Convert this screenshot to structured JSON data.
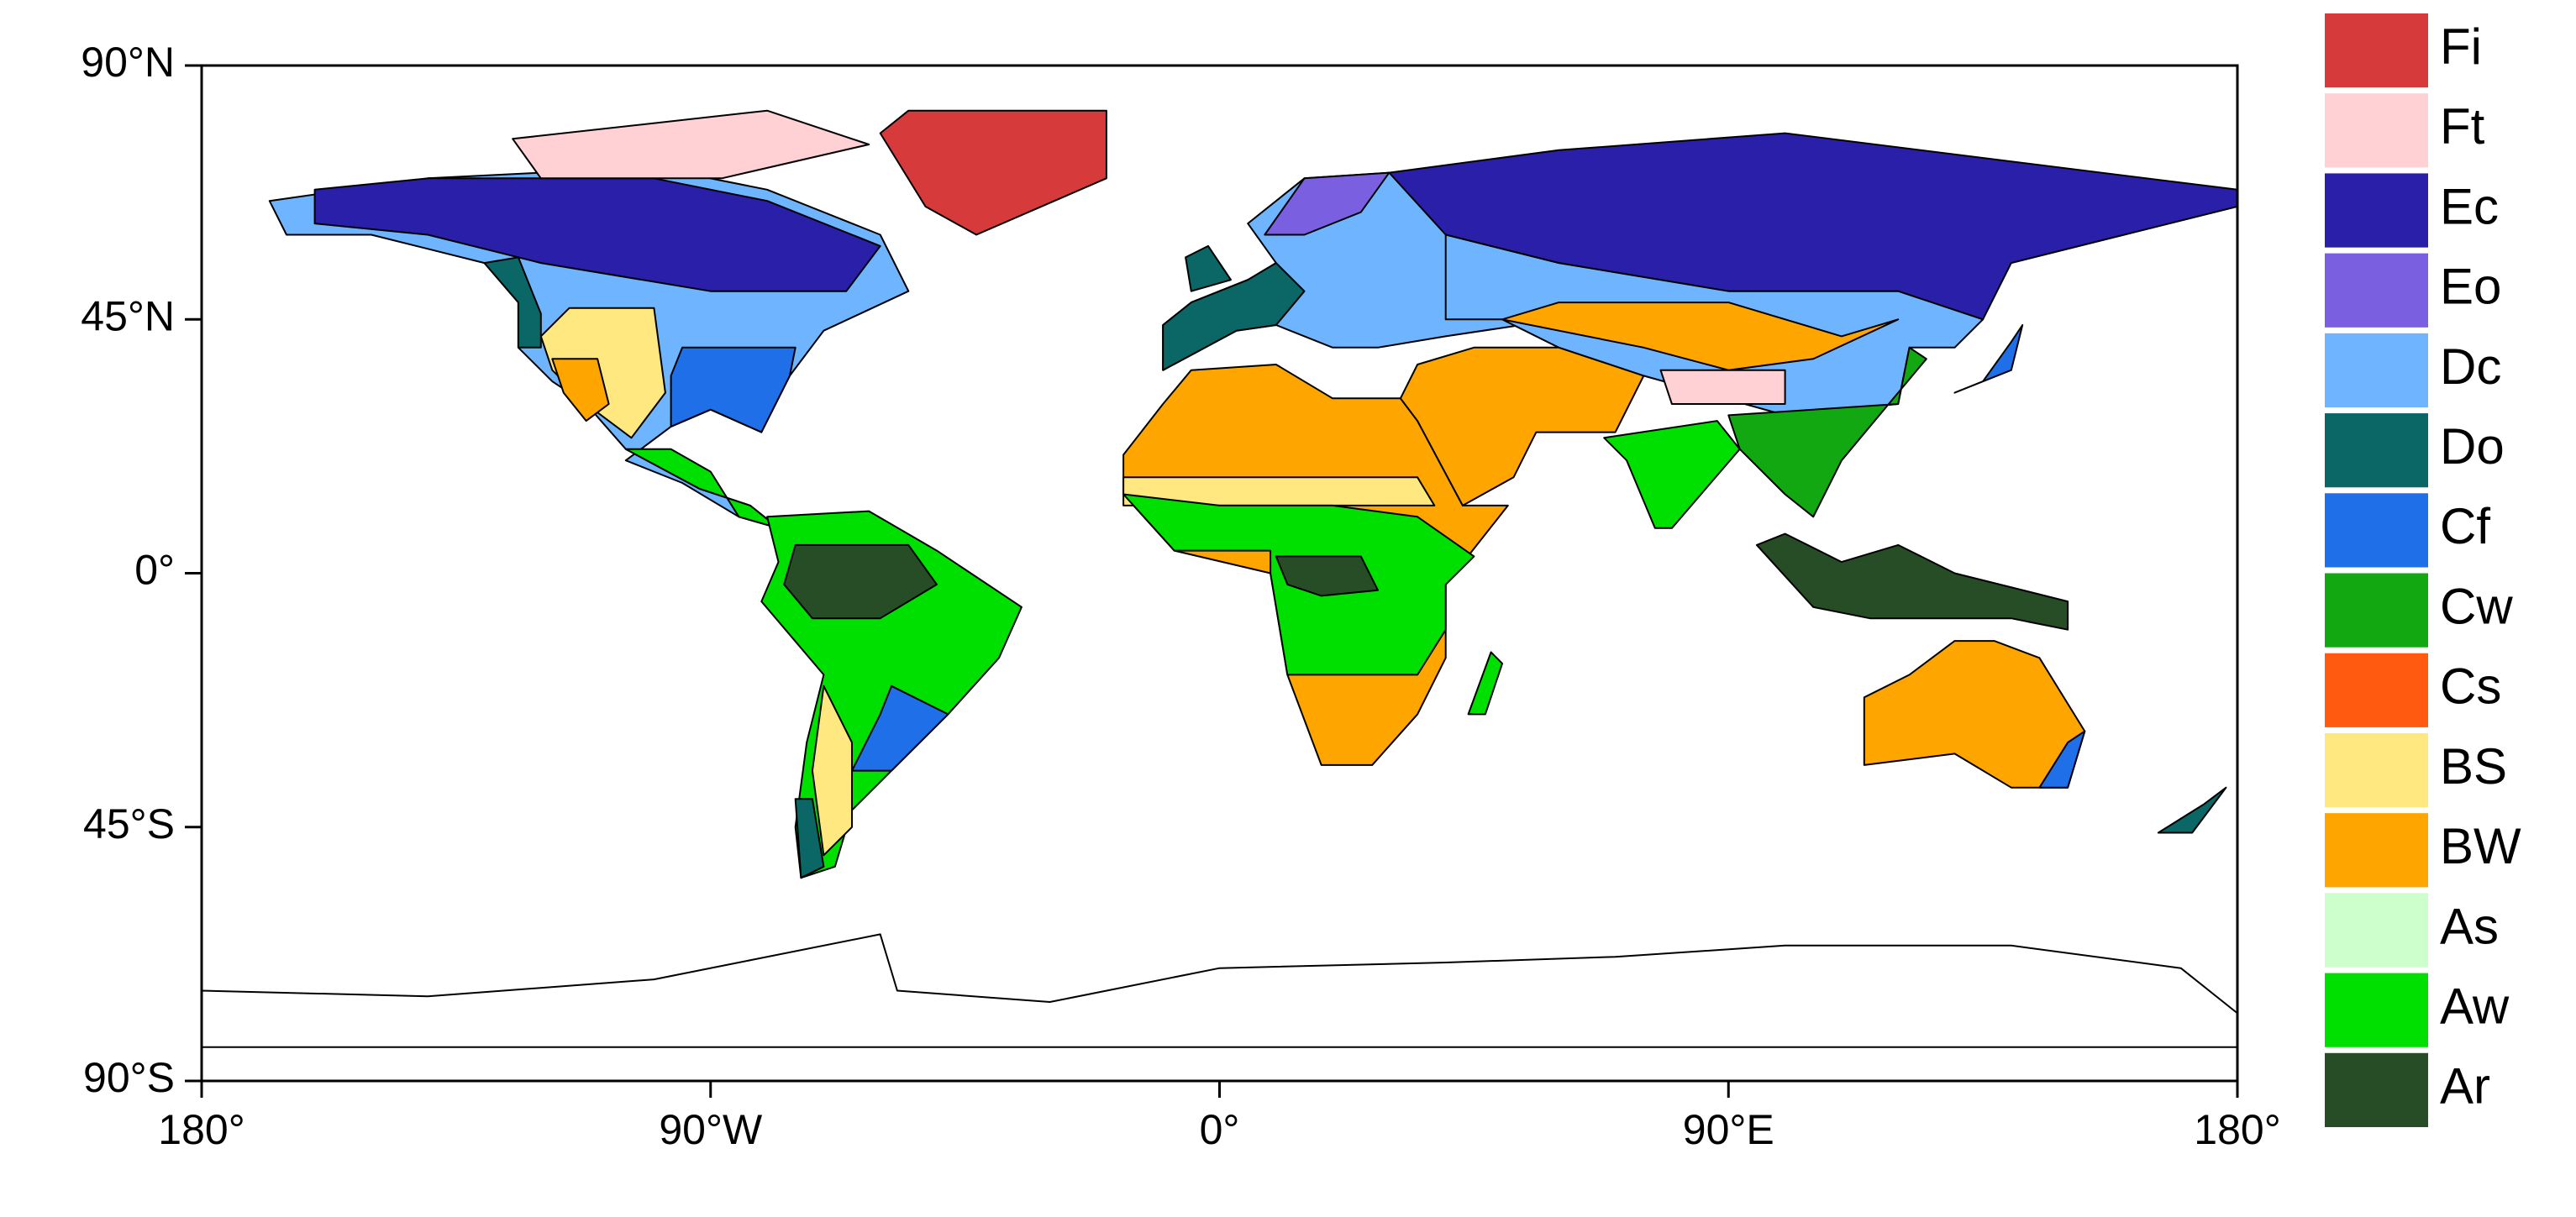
{
  "map": {
    "xlim": [
      -180,
      180
    ],
    "ylim": [
      -90,
      90
    ],
    "xticks": [
      {
        "value": -180,
        "label": "180°"
      },
      {
        "value": -90,
        "label": "90°W"
      },
      {
        "value": 0,
        "label": "0°"
      },
      {
        "value": 90,
        "label": "90°E"
      },
      {
        "value": 180,
        "label": "180°"
      }
    ],
    "yticks": [
      {
        "value": 90,
        "label": "90°N"
      },
      {
        "value": 45,
        "label": "45°N"
      },
      {
        "value": 0,
        "label": "0°"
      },
      {
        "value": -45,
        "label": "45°S"
      },
      {
        "value": -90,
        "label": "90°S"
      }
    ],
    "legend": [
      {
        "name": "Fi",
        "color": "#d63a3a"
      },
      {
        "name": "Ft",
        "color": "#ffd0d4"
      },
      {
        "name": "Ec",
        "color": "#2a1fa8"
      },
      {
        "name": "Eo",
        "color": "#7a5fe0"
      },
      {
        "name": "Dc",
        "color": "#6fb4ff"
      },
      {
        "name": "Do",
        "color": "#0b6666"
      },
      {
        "name": "Cf",
        "color": "#1f6fe8"
      },
      {
        "name": "Cw",
        "color": "#12a812"
      },
      {
        "name": "Cs",
        "color": "#ff5a10"
      },
      {
        "name": "BS",
        "color": "#ffe880"
      },
      {
        "name": "BW",
        "color": "#ffa500"
      },
      {
        "name": "As",
        "color": "#ccffcc"
      },
      {
        "name": "Aw",
        "color": "#00e000"
      },
      {
        "name": "Ar",
        "color": "#264d26"
      }
    ]
  }
}
